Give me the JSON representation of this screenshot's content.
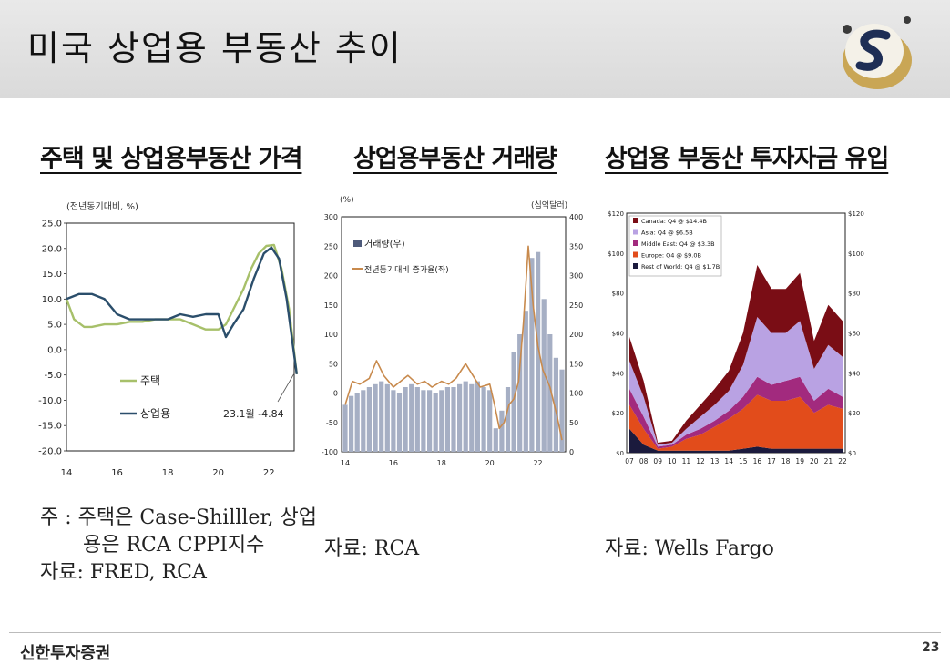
{
  "slide_title": "미국 상업용 부동산 추이",
  "brand": "신한투자증권",
  "page_number": "23",
  "colors": {
    "housing": "#a7c06a",
    "commercial": "#2b4e6b",
    "volume_bar": "#a6afc4",
    "yoy_line": "#c88a4d"
  },
  "charts": [
    {
      "title": "주택 및 상업용부동산 가격",
      "notes": [
        "주 : 주택은 Case-Shilller, 상업",
        "용은 RCA CPPI지수",
        "자료: FRED, RCA"
      ]
    },
    {
      "title": "상업용부동산 거래량",
      "notes": [
        "자료: RCA"
      ]
    },
    {
      "title": "상업용 부동산 투자자금 유입",
      "notes": [
        "자료: Wells Fargo"
      ]
    }
  ],
  "chart_data": [
    {
      "type": "line",
      "title": "주택 및 상업용부동산 가격",
      "ylabel": "(전년동기대비, %)",
      "ylim": [
        -20,
        25
      ],
      "yticks": [
        "25.0",
        "20.0",
        "15.0",
        "10.0",
        "5.0",
        "0.0",
        "-5.0",
        "-10.0",
        "-15.0",
        "-20.0"
      ],
      "xlim": [
        14,
        23
      ],
      "xticks": [
        "14",
        "16",
        "18",
        "20",
        "22"
      ],
      "grid": false,
      "legend": "middle-left",
      "annotation": "23.1월 -4.84",
      "series": [
        {
          "name": "주택",
          "color": "#a7c06a",
          "x": [
            14,
            14.3,
            14.7,
            15,
            15.5,
            16,
            16.5,
            17,
            17.5,
            18,
            18.5,
            19,
            19.5,
            20,
            20.3,
            20.6,
            21,
            21.3,
            21.6,
            21.9,
            22.2,
            22.5,
            22.8,
            23.1
          ],
          "y": [
            10,
            6,
            4.5,
            4.5,
            5,
            5,
            5.5,
            5.5,
            6,
            6,
            6,
            5,
            4,
            4,
            5,
            8,
            12,
            16,
            19,
            20.5,
            20.7,
            16,
            8,
            -4.84
          ]
        },
        {
          "name": "상업용",
          "color": "#2b4e6b",
          "x": [
            14,
            14.5,
            15,
            15.5,
            16,
            16.5,
            17,
            17.5,
            18,
            18.5,
            19,
            19.5,
            20,
            20.3,
            20.6,
            21,
            21.4,
            21.8,
            22.1,
            22.4,
            22.7,
            23.1
          ],
          "y": [
            10,
            11,
            11,
            10,
            7,
            6,
            6,
            6,
            6,
            7,
            6.5,
            7,
            7,
            2.5,
            5,
            8,
            14,
            19,
            20.2,
            18,
            10,
            -4.84
          ]
        }
      ]
    },
    {
      "type": "bar",
      "title": "상업용부동산 거래량",
      "ylabel_left": "(%)",
      "ylabel_right": "(십억달러)",
      "ylim_left": [
        -100,
        300
      ],
      "ylim_right": [
        0,
        400
      ],
      "yticks_left": [
        "300",
        "250",
        "200",
        "150",
        "100",
        "50",
        "0",
        "-50",
        "-100"
      ],
      "yticks_right": [
        "400",
        "350",
        "300",
        "250",
        "200",
        "150",
        "100",
        "50",
        "0"
      ],
      "xlim": [
        14,
        23
      ],
      "xticks": [
        "14",
        "16",
        "18",
        "20",
        "22"
      ],
      "legend": "top-left",
      "series": [
        {
          "name": "거래량(우)",
          "type": "bar",
          "axis": "right",
          "color": "#a6afc4",
          "x": [
            14,
            14.25,
            14.5,
            14.75,
            15,
            15.25,
            15.5,
            15.75,
            16,
            16.25,
            16.5,
            16.75,
            17,
            17.25,
            17.5,
            17.75,
            18,
            18.25,
            18.5,
            18.75,
            19,
            19.25,
            19.5,
            19.75,
            20,
            20.25,
            20.5,
            20.75,
            21,
            21.25,
            21.5,
            21.75,
            22,
            22.25,
            22.5,
            22.75,
            23
          ],
          "values": [
            80,
            95,
            100,
            105,
            110,
            115,
            120,
            115,
            105,
            100,
            110,
            115,
            110,
            105,
            105,
            100,
            105,
            110,
            110,
            115,
            120,
            115,
            120,
            110,
            105,
            40,
            70,
            110,
            170,
            200,
            240,
            330,
            340,
            260,
            200,
            160,
            140
          ]
        },
        {
          "name": "전년동기대비 증가율(좌)",
          "type": "line",
          "axis": "left",
          "color": "#c88a4d",
          "x": [
            14,
            14.3,
            14.6,
            15,
            15.3,
            15.6,
            16,
            16.3,
            16.6,
            17,
            17.3,
            17.6,
            18,
            18.3,
            18.6,
            19,
            19.3,
            19.6,
            20,
            20.2,
            20.4,
            20.6,
            20.8,
            21,
            21.2,
            21.4,
            21.6,
            21.8,
            22,
            22.2,
            22.5,
            22.8,
            23
          ],
          "values": [
            -20,
            20,
            15,
            25,
            55,
            30,
            10,
            20,
            30,
            15,
            20,
            10,
            20,
            15,
            25,
            50,
            30,
            10,
            15,
            -20,
            -60,
            -50,
            -20,
            -10,
            20,
            120,
            250,
            150,
            80,
            40,
            10,
            -40,
            -80
          ]
        }
      ]
    },
    {
      "type": "area",
      "title": "상업용 부동산 투자자금 유입",
      "ylim": [
        0,
        120
      ],
      "yticks": [
        "$120",
        "$100",
        "$80",
        "$60",
        "$40",
        "$20",
        "$0"
      ],
      "xticks": [
        "07",
        "08",
        "09",
        "10",
        "11",
        "12",
        "13",
        "14",
        "15",
        "16",
        "17",
        "18",
        "19",
        "20",
        "21",
        "22"
      ],
      "legend": "top-left",
      "series": [
        {
          "name": "Rest of World: Q4 @ $1.7B",
          "color": "#1b1a3d",
          "values": [
            12,
            4,
            1,
            1,
            1,
            1,
            1,
            1,
            2,
            3,
            2,
            2,
            2,
            2,
            2,
            2
          ]
        },
        {
          "name": "Europe: Q4 @ $9.0B",
          "color": "#e24c1b",
          "values": [
            12,
            8,
            1,
            2,
            6,
            8,
            12,
            16,
            20,
            26,
            24,
            24,
            26,
            18,
            22,
            20
          ]
        },
        {
          "name": "Middle East: Q4 @ $3.3B",
          "color": "#a22a7e",
          "values": [
            8,
            6,
            1,
            1,
            2,
            3,
            3,
            4,
            6,
            9,
            8,
            10,
            10,
            6,
            8,
            6
          ]
        },
        {
          "name": "Asia: Q4 @ $6.5B",
          "color": "#b9a2e3",
          "values": [
            14,
            10,
            1,
            1,
            3,
            6,
            8,
            10,
            16,
            30,
            26,
            24,
            28,
            16,
            22,
            20
          ]
        },
        {
          "name": "Canada: Q4 @ $14.4B",
          "color": "#7a0d15",
          "values": [
            12,
            8,
            1,
            1,
            4,
            6,
            8,
            10,
            16,
            26,
            22,
            22,
            24,
            14,
            20,
            18
          ]
        }
      ]
    }
  ]
}
